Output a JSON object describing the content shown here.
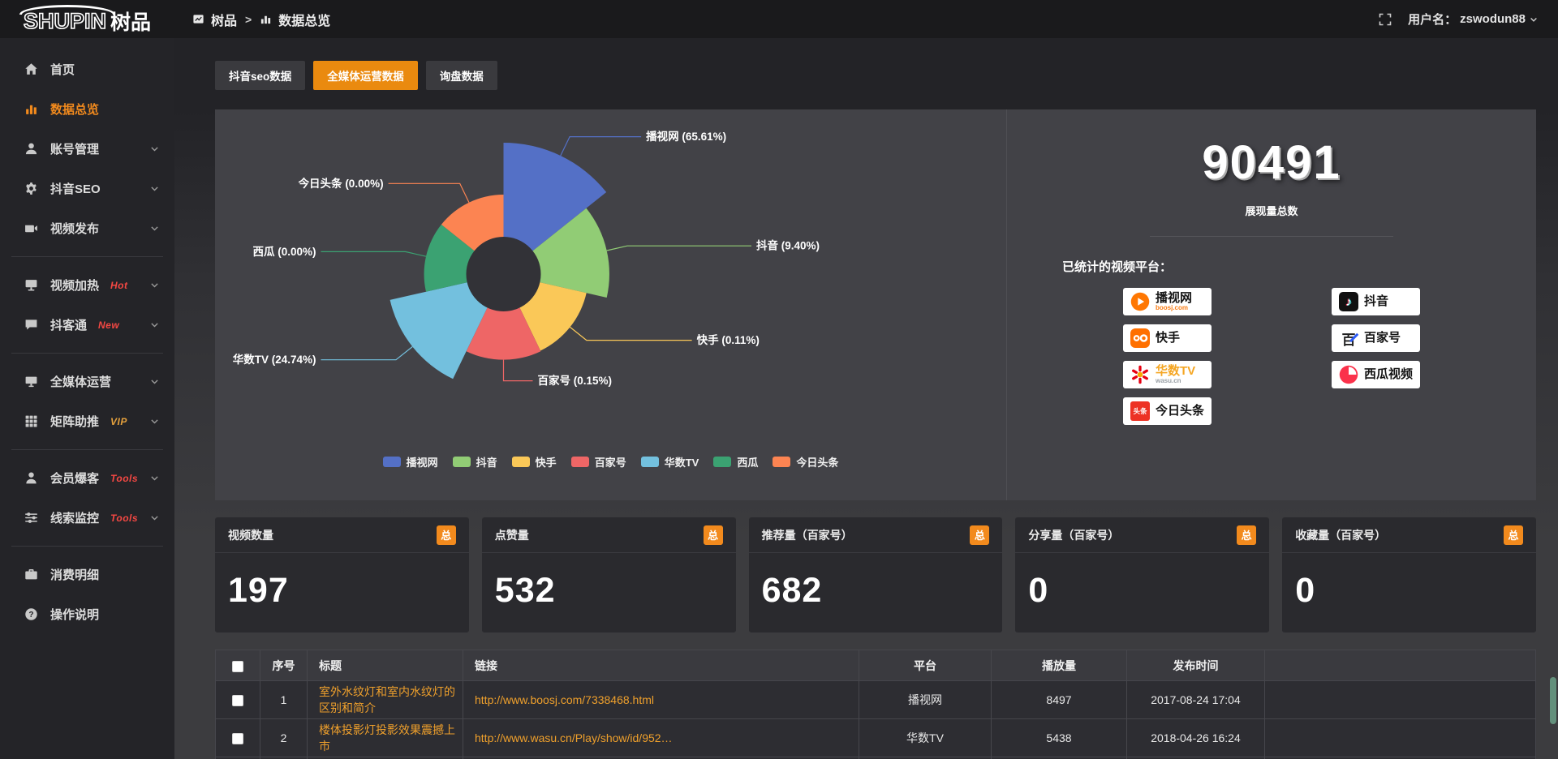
{
  "header": {
    "logo_main": "SHUPIN",
    "logo_suffix": "树品",
    "breadcrumb_root": "树品",
    "breadcrumb_sep": ">",
    "breadcrumb_current": "数据总览",
    "username_label": "用户名：",
    "username": "zswodun88"
  },
  "sidebar": {
    "items": [
      {
        "label": "首页",
        "icon": "home"
      },
      {
        "label": "数据总览",
        "icon": "bar-chart",
        "active": true
      },
      {
        "label": "账号管理",
        "icon": "user",
        "expandable": true
      },
      {
        "label": "抖音SEO",
        "icon": "gear",
        "expandable": true
      },
      {
        "label": "视频发布",
        "icon": "video",
        "expandable": true,
        "divider_after": true
      },
      {
        "label": "视频加热",
        "icon": "display",
        "tag": "Hot",
        "tag_color": "#f54843",
        "expandable": true
      },
      {
        "label": "抖客通",
        "icon": "chat",
        "tag": "New",
        "tag_color": "#f54843",
        "expandable": true,
        "divider_after": true
      },
      {
        "label": "全媒体运营",
        "icon": "monitor",
        "expandable": true
      },
      {
        "label": "矩阵助推",
        "icon": "grid",
        "tag": "VIP",
        "tag_color": "#e7a23d",
        "expandable": true,
        "divider_after": true
      },
      {
        "label": "会员爆客",
        "icon": "person",
        "tag": "Tools",
        "tag_color": "#f54843",
        "expandable": true
      },
      {
        "label": "线索监控",
        "icon": "sliders",
        "tag": "Tools",
        "tag_color": "#f54843",
        "expandable": true,
        "divider_after": true
      },
      {
        "label": "消费明细",
        "icon": "wallet"
      },
      {
        "label": "操作说明",
        "icon": "question"
      }
    ]
  },
  "tabs": [
    {
      "label": "抖音seo数据"
    },
    {
      "label": "全媒体运营数据",
      "active": true
    },
    {
      "label": "询盘数据"
    }
  ],
  "chart_data": {
    "type": "pie",
    "variant": "nightingale-rose",
    "legend_position": "bottom",
    "items": [
      {
        "name": "播视网",
        "pct": 65.61,
        "color": "#5470c6"
      },
      {
        "name": "抖音",
        "pct": 9.4,
        "color": "#91cc75"
      },
      {
        "name": "快手",
        "pct": 0.11,
        "color": "#fac858"
      },
      {
        "name": "百家号",
        "pct": 0.15,
        "color": "#ee6666"
      },
      {
        "name": "华数TV",
        "pct": 24.74,
        "color": "#73c0de"
      },
      {
        "name": "西瓜",
        "pct": 0,
        "color": "#3ba272"
      },
      {
        "name": "今日头条",
        "pct": 0,
        "color": "#fc8452"
      }
    ]
  },
  "summary": {
    "total": "90491",
    "total_label": "展现量总数",
    "platforms_label": "已统计的视频平台：",
    "platform_columns": [
      [
        {
          "name": "播视网",
          "sub": "boosj.com",
          "sub_color": "#f97c14",
          "logo": "boosj"
        },
        {
          "name": "快手",
          "logo": "kuaishou"
        },
        {
          "name": "华数TV",
          "name_color": "#f5a623",
          "sub": "wasu.cn",
          "sub_color": "#9aa0a6",
          "logo": "wasu"
        },
        {
          "name": "今日头条",
          "logo": "toutiao",
          "logo_text": "头条"
        }
      ],
      [
        {
          "name": "抖音",
          "logo": "douyin",
          "logo_text": "♪"
        },
        {
          "name": "百家号",
          "logo": "baijia",
          "logo_text": "百"
        },
        {
          "name": "西瓜视频",
          "logo": "xigua"
        }
      ]
    ]
  },
  "stat_cards": [
    {
      "title": "视频数量",
      "badge": "总",
      "value": "197"
    },
    {
      "title": "点赞量",
      "badge": "总",
      "value": "532"
    },
    {
      "title": "推荐量（百家号）",
      "badge": "总",
      "value": "682"
    },
    {
      "title": "分享量（百家号）",
      "badge": "总",
      "value": "0"
    },
    {
      "title": "收藏量（百家号）",
      "badge": "总",
      "value": "0"
    }
  ],
  "table": {
    "columns": [
      "序号",
      "标题",
      "链接",
      "平台",
      "播放量",
      "发布时间"
    ],
    "rows": [
      {
        "index": "1",
        "title": "室外水纹灯和室内水纹灯的区别和简介",
        "link": "http://www.boosj.com/7338468.html",
        "platform": "播视网",
        "plays": "8497",
        "time": "2017-08-24 17:04"
      },
      {
        "index": "2",
        "title": "楼体投影灯投影效果震撼上市",
        "link": "http://www.wasu.cn/Play/show/id/952…",
        "platform": "华数TV",
        "plays": "5438",
        "time": "2018-04-26 16:24"
      }
    ]
  },
  "colors": {
    "accent": "#f28a1d",
    "tab_active": "#ea8a0f",
    "link": "#efa02c",
    "hole": "#323237"
  }
}
